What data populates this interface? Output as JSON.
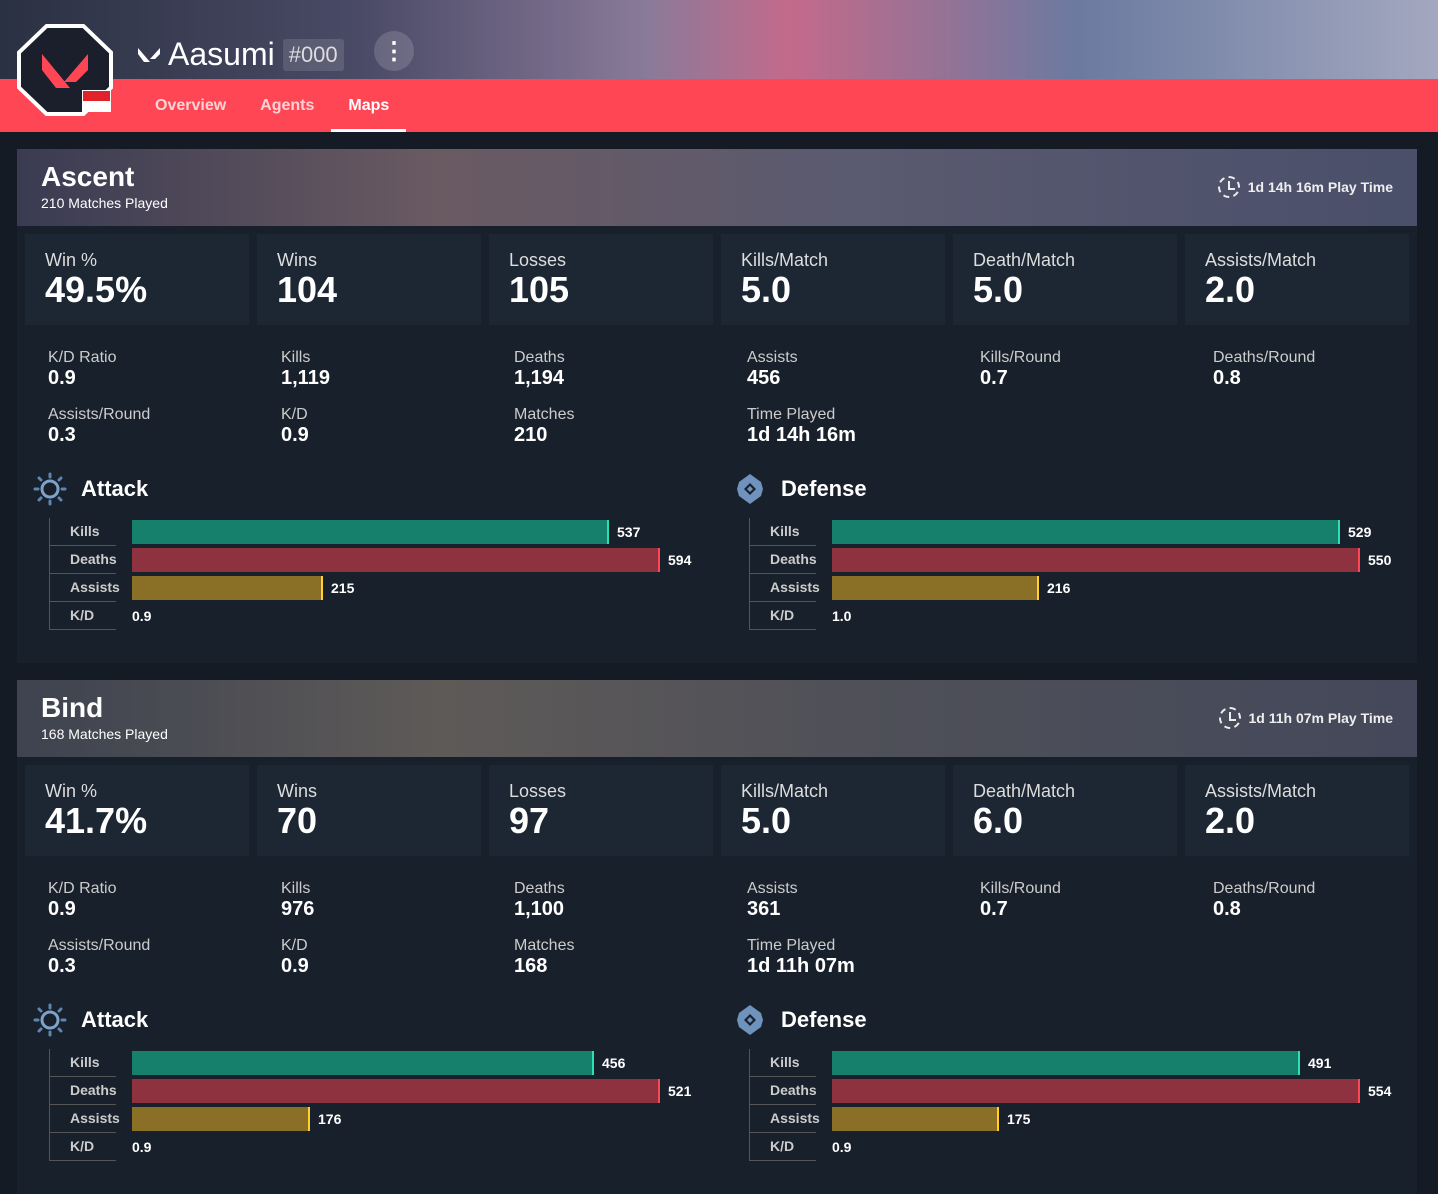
{
  "profile": {
    "name": "Aasumi",
    "tag": "#000",
    "more_icon": "vertical-ellipsis-icon",
    "flag": "singapore"
  },
  "tabs": [
    {
      "label": "Overview"
    },
    {
      "label": "Agents"
    },
    {
      "label": "Maps",
      "active": true
    }
  ],
  "colors": {
    "accent": "#ff4655",
    "kills": "#16806c",
    "deaths": "#8e3240",
    "assists": "#8a7026",
    "kills_edge": "#2de0b4",
    "deaths_edge": "#ff4655",
    "assists_edge": "#ffd030"
  },
  "maps": [
    {
      "name": "Ascent",
      "matches_played": "210 Matches Played",
      "play_time": "1d 14h 16m Play Time",
      "cards": [
        {
          "label": "Win %",
          "value": "49.5%"
        },
        {
          "label": "Wins",
          "value": "104"
        },
        {
          "label": "Losses",
          "value": "105"
        },
        {
          "label": "Kills/Match",
          "value": "5.0"
        },
        {
          "label": "Death/Match",
          "value": "5.0"
        },
        {
          "label": "Assists/Match",
          "value": "2.0"
        }
      ],
      "stats": [
        {
          "label": "K/D Ratio",
          "value": "0.9"
        },
        {
          "label": "Kills",
          "value": "1,119"
        },
        {
          "label": "Deaths",
          "value": "1,194"
        },
        {
          "label": "Assists",
          "value": "456"
        },
        {
          "label": "Kills/Round",
          "value": "0.7"
        },
        {
          "label": "Deaths/Round",
          "value": "0.8"
        },
        {
          "label": "Assists/Round",
          "value": "0.3"
        },
        {
          "label": "K/D",
          "value": "0.9"
        },
        {
          "label": "Matches",
          "value": "210"
        },
        {
          "label": "Time Played",
          "value": "1d 14h 16m"
        }
      ],
      "attack": {
        "title": "Attack",
        "kills": 537,
        "deaths": 594,
        "assists": 215,
        "kd": "0.9"
      },
      "defense": {
        "title": "Defense",
        "kills": 529,
        "deaths": 550,
        "assists": 216,
        "kd": "1.0"
      }
    },
    {
      "name": "Bind",
      "matches_played": "168 Matches Played",
      "play_time": "1d 11h 07m Play Time",
      "cards": [
        {
          "label": "Win %",
          "value": "41.7%"
        },
        {
          "label": "Wins",
          "value": "70"
        },
        {
          "label": "Losses",
          "value": "97"
        },
        {
          "label": "Kills/Match",
          "value": "5.0"
        },
        {
          "label": "Death/Match",
          "value": "6.0"
        },
        {
          "label": "Assists/Match",
          "value": "2.0"
        }
      ],
      "stats": [
        {
          "label": "K/D Ratio",
          "value": "0.9"
        },
        {
          "label": "Kills",
          "value": "976"
        },
        {
          "label": "Deaths",
          "value": "1,100"
        },
        {
          "label": "Assists",
          "value": "361"
        },
        {
          "label": "Kills/Round",
          "value": "0.7"
        },
        {
          "label": "Deaths/Round",
          "value": "0.8"
        },
        {
          "label": "Assists/Round",
          "value": "0.3"
        },
        {
          "label": "K/D",
          "value": "0.9"
        },
        {
          "label": "Matches",
          "value": "168"
        },
        {
          "label": "Time Played",
          "value": "1d 11h 07m"
        }
      ],
      "attack": {
        "title": "Attack",
        "kills": 456,
        "deaths": 521,
        "assists": 176,
        "kd": "0.9"
      },
      "defense": {
        "title": "Defense",
        "kills": 491,
        "deaths": 554,
        "assists": 175,
        "kd": "0.9"
      }
    }
  ],
  "row_labels": {
    "kills": "Kills",
    "deaths": "Deaths",
    "assists": "Assists",
    "kd": "K/D"
  }
}
